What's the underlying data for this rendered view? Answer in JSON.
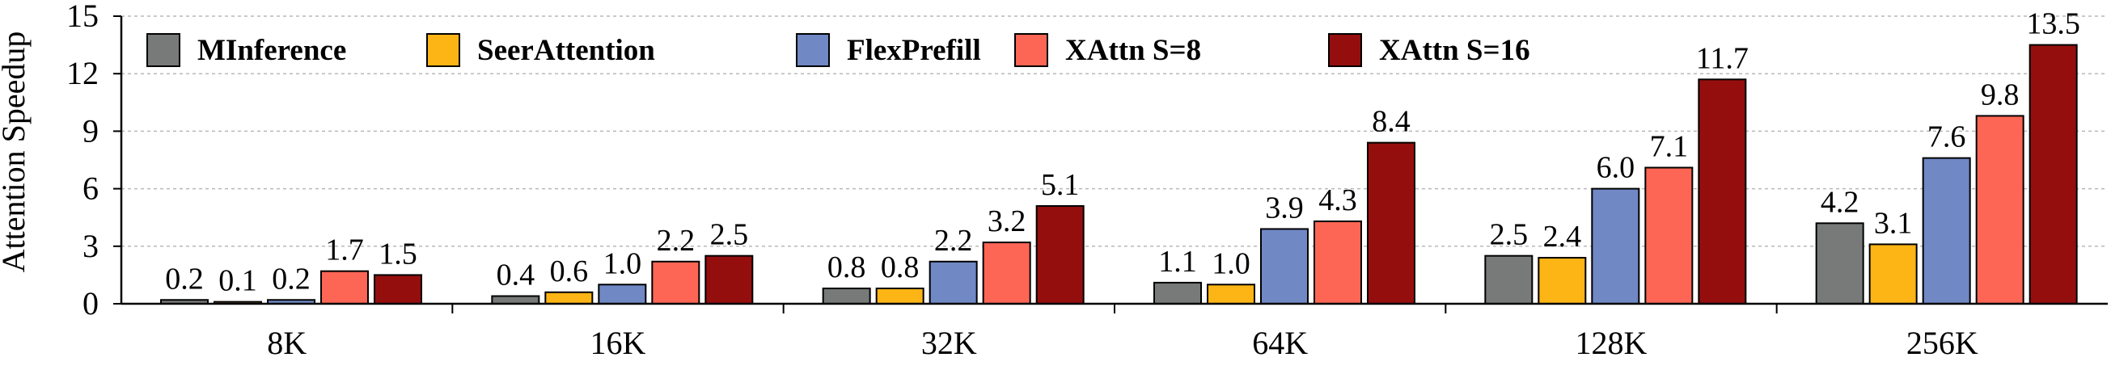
{
  "chart_data": {
    "type": "bar",
    "title": "",
    "xlabel": "",
    "ylabel": "Attention Speedup",
    "ylim": [
      0,
      15
    ],
    "yticks": [
      "0",
      "3",
      "6",
      "9",
      "12",
      "15"
    ],
    "categories": [
      "8K",
      "16K",
      "32K",
      "64K",
      "128K",
      "256K"
    ],
    "legend_position": "top-left",
    "series": [
      {
        "name": "MInference",
        "color": "#777a78",
        "values": [
          0.2,
          0.4,
          0.8,
          1.1,
          2.5,
          4.2
        ],
        "labels": [
          "0.2",
          "0.4",
          "0.8",
          "1.1",
          "2.5",
          "4.2"
        ]
      },
      {
        "name": "SeerAttention",
        "color": "#fdb515",
        "values": [
          0.1,
          0.6,
          0.8,
          1.0,
          2.4,
          3.1
        ],
        "labels": [
          "0.1",
          "0.6",
          "0.8",
          "1.0",
          "2.4",
          "3.1"
        ]
      },
      {
        "name": "FlexPrefill",
        "color": "#7088c4",
        "values": [
          0.2,
          1.0,
          2.2,
          3.9,
          6.0,
          7.6
        ],
        "labels": [
          "0.2",
          "1.0",
          "2.2",
          "3.9",
          "6.0",
          "7.6"
        ]
      },
      {
        "name": "XAttn S=8",
        "color": "#fd6654",
        "values": [
          1.7,
          2.2,
          3.2,
          4.3,
          7.1,
          9.8
        ],
        "labels": [
          "1.7",
          "2.2",
          "3.2",
          "4.3",
          "7.1",
          "9.8"
        ]
      },
      {
        "name": "XAttn S=16",
        "color": "#950e0e",
        "values": [
          1.5,
          2.5,
          5.1,
          8.4,
          11.7,
          13.5
        ],
        "labels": [
          "1.5",
          "2.5",
          "5.1",
          "8.4",
          "11.7",
          "13.5"
        ]
      }
    ]
  }
}
